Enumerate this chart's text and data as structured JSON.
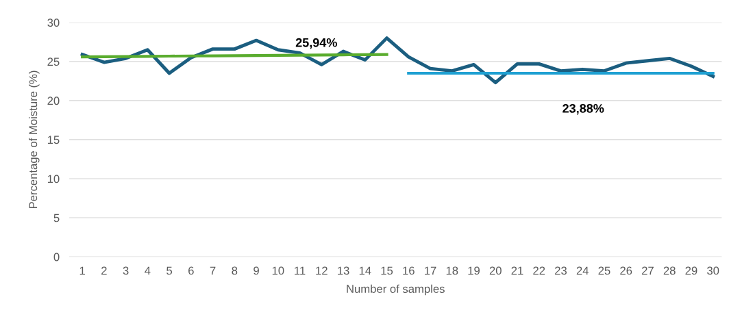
{
  "chart_data": {
    "type": "line",
    "xlabel": "Number of samples",
    "ylabel": "Percentage of Moisture (%)",
    "categories": [
      "1",
      "2",
      "3",
      "4",
      "5",
      "6",
      "7",
      "8",
      "9",
      "10",
      "11",
      "12",
      "13",
      "14",
      "15",
      "16",
      "17",
      "18",
      "19",
      "20",
      "21",
      "22",
      "23",
      "24",
      "25",
      "26",
      "27",
      "28",
      "29",
      "30"
    ],
    "series": [
      {
        "color": "#1b5e80",
        "values": [
          25.9,
          24.9,
          25.4,
          26.5,
          23.5,
          25.5,
          26.6,
          26.6,
          27.7,
          26.5,
          26.1,
          24.6,
          26.3,
          25.2,
          28.0,
          25.6,
          24.1,
          23.8,
          24.6,
          22.3,
          24.7,
          24.7,
          23.8,
          24.0,
          23.8,
          24.8,
          25.1,
          25.4,
          24.4,
          23.1
        ]
      },
      {
        "color": "#5aac2e",
        "values": [
          25.6,
          25.62,
          25.64,
          25.66,
          25.69,
          25.71,
          25.73,
          25.75,
          25.77,
          25.79,
          25.81,
          25.84,
          25.86,
          25.88,
          25.9,
          null,
          null,
          null,
          null,
          null,
          null,
          null,
          null,
          null,
          null,
          null,
          null,
          null,
          null,
          null
        ]
      },
      {
        "color": "#1ea0d2",
        "values": [
          null,
          null,
          null,
          null,
          null,
          null,
          null,
          null,
          null,
          null,
          null,
          null,
          null,
          null,
          null,
          23.5,
          23.5,
          23.5,
          23.5,
          23.5,
          23.5,
          23.5,
          23.5,
          23.5,
          23.5,
          23.5,
          23.5,
          23.5,
          23.5,
          23.5
        ]
      }
    ],
    "annotations": [
      "25,94%",
      "23,88%"
    ],
    "ylim": [
      0,
      30
    ],
    "yticks": [
      0,
      5,
      10,
      15,
      20,
      25,
      30
    ],
    "grid": "y",
    "legend": false,
    "marker": "none",
    "line_style": "solid"
  }
}
